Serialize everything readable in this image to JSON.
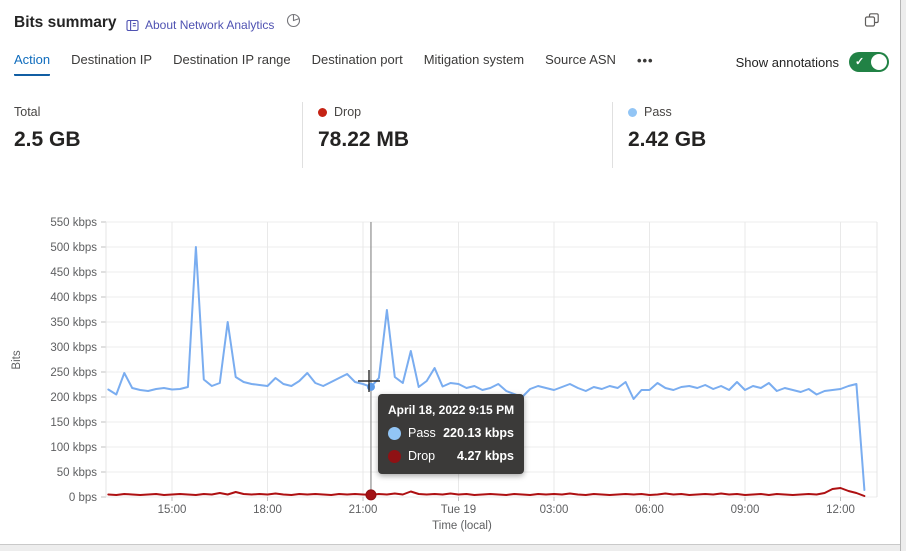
{
  "header": {
    "title": "Bits summary",
    "about_link": "About Network Analytics"
  },
  "tabs": {
    "items": [
      {
        "label": "Action",
        "active": true
      },
      {
        "label": "Destination IP",
        "active": false
      },
      {
        "label": "Destination IP range",
        "active": false
      },
      {
        "label": "Destination port",
        "active": false
      },
      {
        "label": "Mitigation system",
        "active": false
      },
      {
        "label": "Source ASN",
        "active": false
      }
    ],
    "more_label": "•••"
  },
  "annotations_toggle": {
    "label": "Show annotations",
    "state": "on",
    "color": "#218245"
  },
  "summary_cards": [
    {
      "label": "Total",
      "value": "2.5 GB",
      "dot_color": null
    },
    {
      "label": "Drop",
      "value": "78.22 MB",
      "dot_color": "#c52314"
    },
    {
      "label": "Pass",
      "value": "2.42 GB",
      "dot_color": "#92c5f5"
    }
  ],
  "tooltip": {
    "date": "April 18, 2022 9:15 PM",
    "rows": [
      {
        "label": "Pass",
        "value": "220.13 kbps",
        "color": "#92c5f5"
      },
      {
        "label": "Drop",
        "value": "4.27 kbps",
        "color": "#8f1114"
      }
    ]
  },
  "chart_data": {
    "type": "line",
    "xlabel": "Time (local)",
    "ylabel": "Bits",
    "ylim": [
      0,
      550
    ],
    "y_tick_step_kbps": 50,
    "y_ticks": [
      "0 bps",
      "50 kbps",
      "100 kbps",
      "150 kbps",
      "200 kbps",
      "250 kbps",
      "300 kbps",
      "350 kbps",
      "400 kbps",
      "450 kbps",
      "500 kbps",
      "550 kbps"
    ],
    "x_ticks": [
      {
        "label": "15:00",
        "hour": 15
      },
      {
        "label": "18:00",
        "hour": 18
      },
      {
        "label": "21:00",
        "hour": 21
      },
      {
        "label": "Tue 19",
        "hour": 24
      },
      {
        "label": "03:00",
        "hour": 27
      },
      {
        "label": "06:00",
        "hour": 30
      },
      {
        "label": "09:00",
        "hour": 33
      },
      {
        "label": "12:00",
        "hour": 36
      }
    ],
    "x_start_hour": 13.0,
    "x_interval_hours": 0.25,
    "grid": true,
    "legend_position": "summary-cards",
    "hover": {
      "hour": 21.25,
      "pass_kbps": 220.13,
      "drop_kbps": 4.27
    },
    "series": [
      {
        "name": "Pass",
        "color": "#7aadf0",
        "values": [
          215,
          205,
          248,
          218,
          214,
          212,
          216,
          218,
          215,
          216,
          220,
          500,
          235,
          222,
          228,
          350,
          240,
          230,
          226,
          224,
          222,
          238,
          226,
          222,
          232,
          248,
          228,
          222,
          230,
          238,
          246,
          230,
          226,
          220.13,
          238,
          374,
          240,
          228,
          292,
          220,
          232,
          258,
          221,
          228,
          226,
          218,
          222,
          214,
          218,
          226,
          212,
          206,
          200,
          216,
          222,
          218,
          214,
          220,
          226,
          218,
          212,
          220,
          216,
          222,
          218,
          230,
          196,
          214,
          214,
          228,
          218,
          214,
          220,
          222,
          218,
          224,
          216,
          222,
          214,
          230,
          214,
          222,
          218,
          228,
          212,
          218,
          214,
          210,
          216,
          205,
          212,
          214,
          216,
          222,
          226,
          14
        ]
      },
      {
        "name": "Drop",
        "color": "#ae1012",
        "values": [
          5,
          4,
          6,
          5,
          4,
          5,
          6,
          4,
          5,
          6,
          5,
          4,
          6,
          5,
          8,
          5,
          10,
          6,
          5,
          6,
          5,
          7,
          5,
          4,
          6,
          5,
          6,
          5,
          4,
          6,
          5,
          6,
          5,
          4.27,
          6,
          5,
          7,
          5,
          11,
          6,
          5,
          6,
          5,
          7,
          5,
          6,
          4,
          5,
          6,
          5,
          4,
          6,
          5,
          4,
          6,
          5,
          6,
          5,
          7,
          5,
          4,
          6,
          5,
          4,
          5,
          6,
          5,
          6,
          4,
          5,
          7,
          5,
          6,
          4,
          5,
          6,
          5,
          7,
          5,
          6,
          4,
          5,
          6,
          4,
          6,
          5,
          4,
          5,
          6,
          5,
          8,
          16,
          18,
          12,
          8,
          2
        ]
      }
    ]
  }
}
